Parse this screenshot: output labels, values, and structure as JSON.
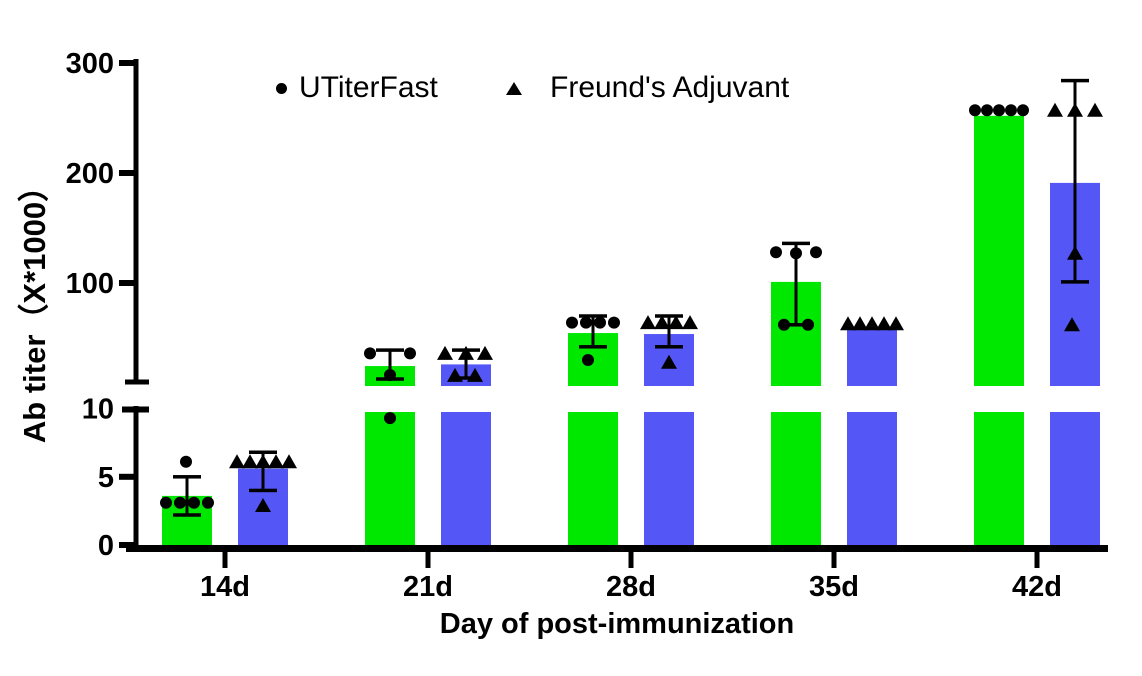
{
  "page": {
    "background": "#ffffff"
  },
  "y_axis": {
    "title": "Ab titer（X*1000）"
  },
  "x_axis": {
    "title": "Day of post-immunization"
  },
  "legend": {
    "items": [
      {
        "label": "UTiterFast",
        "marker": "circle-icon"
      },
      {
        "label": "Freund's Adjuvant",
        "marker": "triangle-icon"
      }
    ]
  },
  "colors": {
    "utiterfast_green": "#00E800",
    "freunds_blue": "#5457F6",
    "axis_black": "#000000"
  },
  "chart_data": {
    "type": "bar",
    "title": "",
    "xlabel": "Day of post-immunization",
    "ylabel": "Ab titer（X*1000）",
    "categories": [
      "14d",
      "21d",
      "28d",
      "35d",
      "42d"
    ],
    "grid": false,
    "legend_position": "top",
    "y_axis_break": {
      "lower_range": [
        0,
        10
      ],
      "lower_ticks": [
        0,
        5,
        10
      ],
      "upper_range": [
        10,
        300
      ],
      "upper_ticks": [
        100,
        200,
        300
      ]
    },
    "units": "titer x1000",
    "series": [
      {
        "name": "UTiterFast",
        "color": "#00E800",
        "marker": "circle",
        "bar_means": [
          3.6,
          24.5,
          54.5,
          101,
          252
        ],
        "error_low": [
          2.2,
          12.7,
          42,
          62,
          null
        ],
        "error_high": [
          5.0,
          39,
          70,
          136,
          null
        ],
        "points": [
          [
            [
              3.1,
              -21
            ],
            [
              3.1,
              -7
            ],
            [
              3.1,
              7
            ],
            [
              3.1,
              21
            ],
            [
              6.1,
              -1
            ]
          ],
          [
            [
              36,
              -20
            ],
            [
              36,
              20
            ],
            [
              16.4,
              0
            ],
            [
              9.3,
              0
            ]
          ],
          [
            [
              64,
              -21
            ],
            [
              64,
              -7
            ],
            [
              64,
              7
            ],
            [
              64,
              21
            ],
            [
              30,
              -5
            ]
          ],
          [
            [
              128,
              -20
            ],
            [
              127,
              0
            ],
            [
              128,
              20
            ],
            [
              62,
              -12
            ],
            [
              62,
              12
            ]
          ],
          [
            [
              257,
              -24
            ],
            [
              257,
              -12
            ],
            [
              257,
              0
            ],
            [
              257,
              12
            ],
            [
              257,
              24
            ]
          ]
        ]
      },
      {
        "name": "Freund's Adjuvant",
        "color": "#5457F6",
        "marker": "triangle",
        "bar_means": [
          5.6,
          26,
          53.6,
          57.5,
          191
        ],
        "error_low": [
          4.0,
          13.6,
          42,
          null,
          101
        ],
        "error_high": [
          6.8,
          39,
          70,
          null,
          284
        ],
        "points": [
          [
            [
              6.1,
              -26
            ],
            [
              6.1,
              -13
            ],
            [
              6.1,
              0
            ],
            [
              6.1,
              13
            ],
            [
              6.1,
              26
            ],
            [
              2.9,
              0
            ]
          ],
          [
            [
              36,
              -21
            ],
            [
              36,
              0
            ],
            [
              36,
              19
            ],
            [
              16,
              -11
            ],
            [
              16,
              9
            ]
          ],
          [
            [
              64,
              -21
            ],
            [
              64,
              -7
            ],
            [
              64,
              7
            ],
            [
              64,
              21
            ],
            [
              28,
              0
            ]
          ],
          [
            [
              63,
              -24
            ],
            [
              63,
              -12
            ],
            [
              63,
              0
            ],
            [
              63,
              12
            ],
            [
              63,
              24
            ]
          ],
          [
            [
              257,
              -20
            ],
            [
              257,
              0
            ],
            [
              257,
              20
            ],
            [
              127,
              0
            ],
            [
              62,
              -3
            ]
          ]
        ]
      }
    ]
  }
}
